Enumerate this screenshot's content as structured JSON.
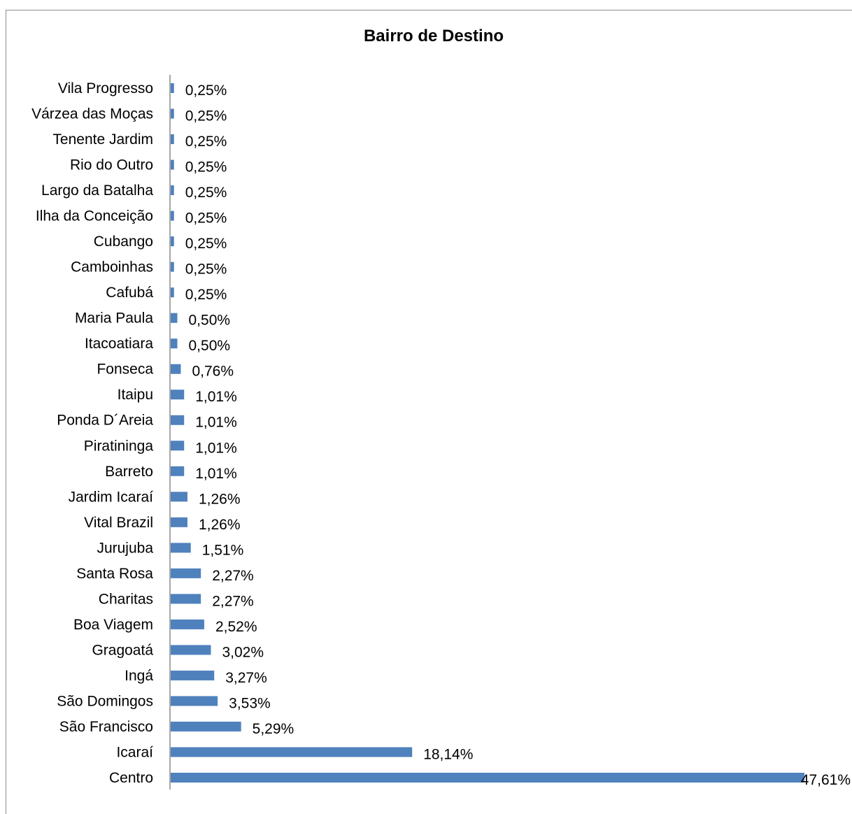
{
  "chart_data": {
    "type": "bar",
    "orientation": "horizontal",
    "title": "Bairro de Destino",
    "xlabel": "",
    "ylabel": "",
    "bar_color": "#4f81bd",
    "grid": false,
    "legend": "none",
    "xlim": [
      0,
      47.61
    ],
    "categories": [
      "Vila Progresso",
      "Várzea das Moças",
      "Tenente Jardim",
      "Rio do Outro",
      "Largo da Batalha",
      "Ilha da Conceição",
      "Cubango",
      "Camboinhas",
      "Cafubá",
      "Maria Paula",
      "Itacoatiara",
      "Fonseca",
      "Itaipu",
      "Ponda D´Areia",
      "Piratininga",
      "Barreto",
      "Jardim Icaraí",
      "Vital Brazil",
      "Jurujuba",
      "Santa Rosa",
      "Charitas",
      "Boa Viagem",
      "Gragoatá",
      "Ingá",
      "São Domingos",
      "São Francisco",
      "Icaraí",
      "Centro"
    ],
    "values": [
      0.25,
      0.25,
      0.25,
      0.25,
      0.25,
      0.25,
      0.25,
      0.25,
      0.25,
      0.5,
      0.5,
      0.76,
      1.01,
      1.01,
      1.01,
      1.01,
      1.26,
      1.26,
      1.51,
      2.27,
      2.27,
      2.52,
      3.02,
      3.27,
      3.53,
      5.29,
      18.14,
      47.61
    ],
    "data_labels": [
      "0,25%",
      "0,25%",
      "0,25%",
      "0,25%",
      "0,25%",
      "0,25%",
      "0,25%",
      "0,25%",
      "0,25%",
      "0,50%",
      "0,50%",
      "0,76%",
      "1,01%",
      "1,01%",
      "1,01%",
      "1,01%",
      "1,26%",
      "1,26%",
      "1,51%",
      "2,27%",
      "2,27%",
      "2,52%",
      "3,02%",
      "3,27%",
      "3,53%",
      "5,29%",
      "18,14%",
      "47,61%"
    ]
  }
}
